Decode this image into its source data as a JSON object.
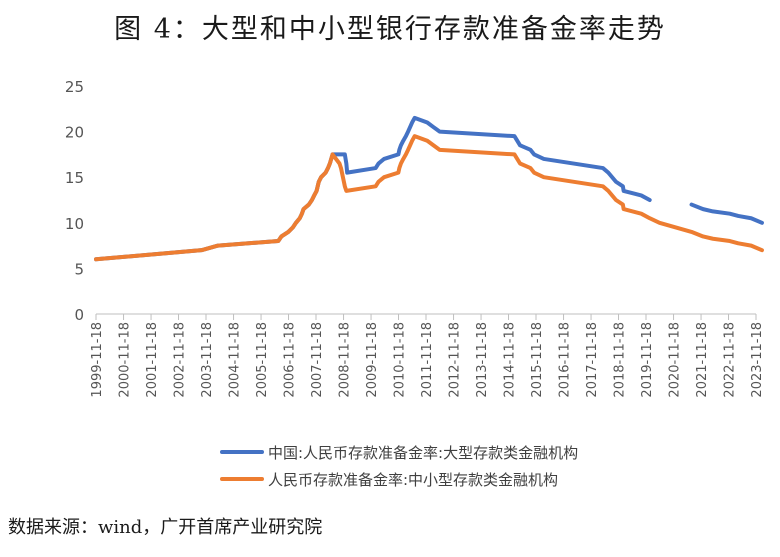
{
  "title": "图 4：大型和中小型银行存款准备金率走势",
  "source_note": "数据来源：wind，广开首席产业研究院",
  "chart_data": {
    "type": "line",
    "title": "图 4：大型和中小型银行存款准备金率走势",
    "xlabel": "",
    "ylabel": "",
    "ylim": [
      0,
      25
    ],
    "yticks": [
      0,
      5,
      10,
      15,
      20,
      25
    ],
    "xlim": [
      "1999-11-18",
      "2023-11-18"
    ],
    "categories": [
      "1999-11-18",
      "2000-11-18",
      "2001-11-18",
      "2002-11-18",
      "2003-11-18",
      "2004-11-18",
      "2005-11-18",
      "2006-11-18",
      "2007-11-18",
      "2008-11-18",
      "2009-11-18",
      "2010-11-18",
      "2011-11-18",
      "2012-11-18",
      "2013-11-18",
      "2014-11-18",
      "2015-11-18",
      "2016-11-18",
      "2017-11-18",
      "2018-11-18",
      "2019-11-18",
      "2020-11-18",
      "2021-11-18",
      "2022-11-18",
      "2023-11-18"
    ],
    "grid": false,
    "legend_position": "bottom",
    "series": [
      {
        "name": "中国:人民币存款准备金率:大型存款类金融机构",
        "color": "#4472c4",
        "points": [
          [
            "1999-11-18",
            6.0
          ],
          [
            "2003-09-21",
            7.0
          ],
          [
            "2004-04-25",
            7.5
          ],
          [
            "2006-07-05",
            8.0
          ],
          [
            "2006-08-15",
            8.5
          ],
          [
            "2006-11-15",
            9.0
          ],
          [
            "2007-01-15",
            9.5
          ],
          [
            "2007-02-25",
            10.0
          ],
          [
            "2007-04-16",
            10.5
          ],
          [
            "2007-05-15",
            11.0
          ],
          [
            "2007-06-05",
            11.5
          ],
          [
            "2007-08-15",
            12.0
          ],
          [
            "2007-09-25",
            12.5
          ],
          [
            "2007-10-25",
            13.0
          ],
          [
            "2007-11-26",
            13.5
          ],
          [
            "2007-12-25",
            14.5
          ],
          [
            "2008-01-25",
            15.0
          ],
          [
            "2008-03-25",
            15.5
          ],
          [
            "2008-04-25",
            16.0
          ],
          [
            "2008-05-20",
            16.5
          ],
          [
            "2008-06-25",
            17.5
          ],
          [
            "2008-12-05",
            17.5
          ],
          [
            "2008-12-25",
            16.5
          ],
          [
            "2009-01-05",
            15.5
          ],
          [
            "2010-01-18",
            16.0
          ],
          [
            "2010-02-25",
            16.5
          ],
          [
            "2010-05-10",
            17.0
          ],
          [
            "2010-11-16",
            17.5
          ],
          [
            "2010-11-29",
            18.0
          ],
          [
            "2010-12-20",
            18.5
          ],
          [
            "2011-01-20",
            19.0
          ],
          [
            "2011-02-24",
            19.5
          ],
          [
            "2011-03-25",
            20.0
          ],
          [
            "2011-04-21",
            20.5
          ],
          [
            "2011-05-18",
            21.0
          ],
          [
            "2011-06-20",
            21.5
          ],
          [
            "2011-12-05",
            21.0
          ],
          [
            "2012-02-24",
            20.5
          ],
          [
            "2012-05-18",
            20.0
          ],
          [
            "2015-02-05",
            19.5
          ],
          [
            "2015-04-20",
            18.5
          ],
          [
            "2015-09-06",
            18.0
          ],
          [
            "2015-10-24",
            17.5
          ],
          [
            "2016-03-01",
            17.0
          ],
          [
            "2018-04-25",
            16.0
          ],
          [
            "2018-07-05",
            15.5
          ],
          [
            "2018-10-15",
            14.5
          ],
          [
            "2019-01-15",
            14.0
          ],
          [
            "2019-01-25",
            13.5
          ],
          [
            "2019-09-16",
            13.0
          ],
          [
            "2020-01-06",
            12.5
          ]
        ],
        "points_after_gap": [
          [
            "2021-07-15",
            12.0
          ],
          [
            "2021-12-15",
            11.5
          ],
          [
            "2022-04-25",
            11.25
          ],
          [
            "2022-12-05",
            11.0
          ],
          [
            "2023-03-27",
            10.75
          ],
          [
            "2023-09-15",
            10.5
          ],
          [
            "2024-02-05",
            10.0
          ]
        ]
      },
      {
        "name": "人民币存款准备金率:中小型存款类金融机构",
        "color": "#ed7d31",
        "points": [
          [
            "1999-11-18",
            6.0
          ],
          [
            "2003-09-21",
            7.0
          ],
          [
            "2004-04-25",
            7.5
          ],
          [
            "2006-07-05",
            8.0
          ],
          [
            "2006-08-15",
            8.5
          ],
          [
            "2006-11-15",
            9.0
          ],
          [
            "2007-01-15",
            9.5
          ],
          [
            "2007-02-25",
            10.0
          ],
          [
            "2007-04-16",
            10.5
          ],
          [
            "2007-05-15",
            11.0
          ],
          [
            "2007-06-05",
            11.5
          ],
          [
            "2007-08-15",
            12.0
          ],
          [
            "2007-09-25",
            12.5
          ],
          [
            "2007-10-25",
            13.0
          ],
          [
            "2007-11-26",
            13.5
          ],
          [
            "2007-12-25",
            14.5
          ],
          [
            "2008-01-25",
            15.0
          ],
          [
            "2008-03-25",
            15.5
          ],
          [
            "2008-04-25",
            16.0
          ],
          [
            "2008-05-20",
            16.5
          ],
          [
            "2008-06-25",
            17.5
          ],
          [
            "2008-09-25",
            16.5
          ],
          [
            "2008-10-15",
            16.0
          ],
          [
            "2008-12-05",
            14.0
          ],
          [
            "2008-12-25",
            13.5
          ],
          [
            "2010-01-18",
            14.0
          ],
          [
            "2010-02-25",
            14.5
          ],
          [
            "2010-05-10",
            15.0
          ],
          [
            "2010-11-16",
            15.5
          ],
          [
            "2010-11-29",
            16.0
          ],
          [
            "2010-12-20",
            16.5
          ],
          [
            "2011-01-20",
            17.0
          ],
          [
            "2011-02-24",
            17.5
          ],
          [
            "2011-03-25",
            18.0
          ],
          [
            "2011-04-21",
            18.5
          ],
          [
            "2011-05-18",
            19.0
          ],
          [
            "2011-06-20",
            19.5
          ],
          [
            "2011-12-05",
            19.0
          ],
          [
            "2012-02-24",
            18.5
          ],
          [
            "2012-05-18",
            18.0
          ],
          [
            "2015-02-05",
            17.5
          ],
          [
            "2015-04-20",
            16.5
          ],
          [
            "2015-09-06",
            16.0
          ],
          [
            "2015-10-24",
            15.5
          ],
          [
            "2016-03-01",
            15.0
          ],
          [
            "2018-04-25",
            14.0
          ],
          [
            "2018-07-05",
            13.5
          ],
          [
            "2018-10-15",
            12.5
          ],
          [
            "2019-01-15",
            12.0
          ],
          [
            "2019-01-25",
            11.5
          ],
          [
            "2019-09-16",
            11.0
          ],
          [
            "2020-01-06",
            10.5
          ],
          [
            "2020-05-15",
            10.0
          ],
          [
            "2021-07-15",
            9.0
          ],
          [
            "2021-12-15",
            8.5
          ],
          [
            "2022-04-25",
            8.25
          ],
          [
            "2022-12-05",
            8.0
          ],
          [
            "2023-03-27",
            7.75
          ],
          [
            "2023-09-15",
            7.5
          ],
          [
            "2024-02-05",
            7.0
          ]
        ]
      }
    ]
  }
}
